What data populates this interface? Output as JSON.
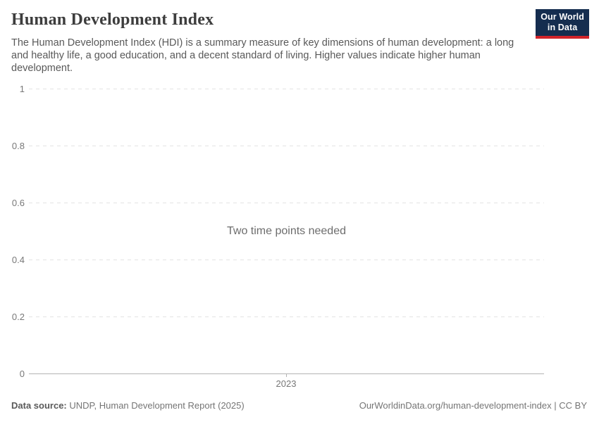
{
  "header": {
    "title": "Human Development Index",
    "subtitle": "The Human Development Index (HDI) is a summary measure of key dimensions of human development: a long and healthy life, a good education, and a decent standard of living. Higher values indicate higher human development.",
    "logo": {
      "line1": "Our World",
      "line2": "in Data"
    }
  },
  "chart_data": {
    "type": "line",
    "title": "Human Development Index",
    "x": [
      2023
    ],
    "series": [],
    "empty_state_message": "Two time points needed",
    "xlabel": "",
    "ylabel": "",
    "x_tick_labels": [
      "2023"
    ],
    "y_ticks": [
      0,
      0.2,
      0.4,
      0.6,
      0.8,
      1
    ],
    "y_tick_labels_top_to_bottom": [
      "1",
      "0.8",
      "0.6",
      "0.4",
      "0.2",
      "0"
    ],
    "ylim": [
      0,
      1
    ],
    "xlim": [
      2023,
      2023
    ],
    "grid": "horizontal-dashed",
    "legend": "none"
  },
  "footer": {
    "data_source_label": "Data source:",
    "data_source_value": "UNDP, Human Development Report (2025)",
    "link": "OurWorldinData.org/human-development-index",
    "separator": "|",
    "license": "CC BY"
  },
  "colors": {
    "logo_navy": "#152d4f",
    "logo_red": "#d1232a",
    "gridline": "#e3e3e3",
    "axis": "#b3b3b3",
    "title_text": "#3d3d3d",
    "subtitle_text": "#595959",
    "tick_text": "#787878",
    "message_text": "#6d6d6d",
    "footer_text": "#757575"
  }
}
